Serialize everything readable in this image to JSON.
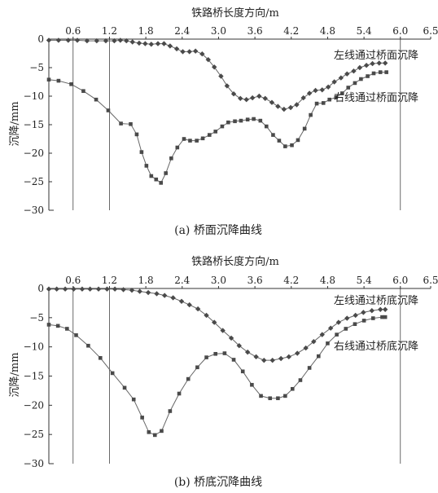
{
  "chart_data": [
    {
      "type": "line",
      "caption": "(a) 桥面沉降曲线",
      "xlabel": "铁路桥长度方向/m",
      "ylabel": "沉降/mm",
      "x_ticks": [
        "0.6",
        "1.2",
        "1.8",
        "2.4",
        "3.0",
        "3.6",
        "4.2",
        "4.8",
        "5.4",
        "6.0",
        "6.5"
      ],
      "y_ticks": [
        "0",
        "−5",
        "−10",
        "−15",
        "−20",
        "−25",
        "−30"
      ],
      "xlim": [
        0.2,
        6.5
      ],
      "ylim": [
        -30,
        0
      ],
      "grid": "vertical lines at 0.6, 1.2 and 6.0",
      "series": [
        {
          "name": "左线通过桥面沉降",
          "marker": "diamond",
          "x": [
            0.2,
            0.36,
            0.52,
            0.67,
            0.83,
            0.99,
            1.14,
            1.28,
            1.38,
            1.48,
            1.58,
            1.69,
            1.79,
            1.89,
            2.0,
            2.1,
            2.2,
            2.31,
            2.41,
            2.52,
            2.62,
            2.73,
            2.83,
            2.93,
            3.04,
            3.14,
            3.25,
            3.36,
            3.46,
            3.56,
            3.67,
            3.77,
            3.88,
            3.98,
            4.08,
            4.19,
            4.29,
            4.4,
            4.5,
            4.6,
            4.71,
            4.81,
            4.91,
            5.02,
            5.12,
            5.23,
            5.33,
            5.44,
            5.54,
            5.65,
            5.75
          ],
          "y": [
            -0.2,
            -0.2,
            -0.2,
            -0.2,
            -0.3,
            -0.3,
            -0.3,
            -0.3,
            -0.2,
            -0.3,
            -0.5,
            -0.7,
            -0.8,
            -0.9,
            -0.8,
            -0.8,
            -1.2,
            -1.7,
            -2.2,
            -2.2,
            -2.1,
            -2.6,
            -3.6,
            -4.9,
            -6.5,
            -8.2,
            -9.6,
            -10.4,
            -10.6,
            -10.3,
            -10.0,
            -10.4,
            -11.1,
            -11.8,
            -12.3,
            -12.0,
            -11.5,
            -10.3,
            -9.5,
            -9.0,
            -8.9,
            -8.4,
            -7.5,
            -6.8,
            -6.1,
            -5.6,
            -5.0,
            -4.6,
            -4.3,
            -4.2,
            -4.2
          ]
        },
        {
          "name": "右线通过桥面沉降",
          "marker": "square",
          "x": [
            0.2,
            0.36,
            0.57,
            0.77,
            0.98,
            1.18,
            1.39,
            1.55,
            1.65,
            1.73,
            1.81,
            1.89,
            1.97,
            2.05,
            2.13,
            2.22,
            2.32,
            2.43,
            2.53,
            2.64,
            2.74,
            2.85,
            2.95,
            3.06,
            3.16,
            3.27,
            3.37,
            3.48,
            3.58,
            3.69,
            3.79,
            3.9,
            4.0,
            4.1,
            4.21,
            4.31,
            4.42,
            4.52,
            4.62,
            4.73,
            4.83,
            4.94,
            5.04,
            5.14,
            5.25,
            5.35,
            5.46,
            5.56,
            5.67,
            5.77
          ],
          "y": [
            -7.1,
            -7.3,
            -7.9,
            -9.1,
            -10.6,
            -12.5,
            -14.8,
            -14.9,
            -16.7,
            -19.8,
            -22.2,
            -24.0,
            -24.6,
            -25.2,
            -23.5,
            -20.9,
            -19.0,
            -17.5,
            -17.8,
            -17.8,
            -17.4,
            -16.8,
            -16.2,
            -15.3,
            -14.6,
            -14.4,
            -14.3,
            -14.1,
            -14.0,
            -14.3,
            -15.3,
            -16.8,
            -17.8,
            -18.8,
            -18.6,
            -17.7,
            -15.7,
            -13.3,
            -11.3,
            -11.2,
            -10.6,
            -10.2,
            -9.5,
            -8.5,
            -7.7,
            -7.0,
            -6.5,
            -6.0,
            -5.8,
            -5.8
          ]
        }
      ]
    },
    {
      "type": "line",
      "caption": "(b) 桥底沉降曲线",
      "xlabel": "铁路桥长度方向/m",
      "ylabel": "沉降/mm",
      "x_ticks": [
        "0.6",
        "1.2",
        "1.8",
        "2.4",
        "3.0",
        "3.6",
        "4.2",
        "4.8",
        "5.4",
        "6.0",
        "6.5"
      ],
      "y_ticks": [
        "0",
        "−5",
        "−10",
        "−15",
        "−20",
        "−25",
        "−30"
      ],
      "xlim": [
        0.2,
        6.5
      ],
      "ylim": [
        -30,
        0
      ],
      "grid": "vertical lines at 0.6, 1.2 and 6.0",
      "series": [
        {
          "name": "左线通过桥底沉降",
          "marker": "diamond",
          "x": [
            0.2,
            0.33,
            0.47,
            0.61,
            0.75,
            0.88,
            1.02,
            1.16,
            1.29,
            1.43,
            1.57,
            1.7,
            1.84,
            1.98,
            2.11,
            2.25,
            2.39,
            2.52,
            2.66,
            2.8,
            2.93,
            3.07,
            3.21,
            3.34,
            3.48,
            3.62,
            3.75,
            3.89,
            4.03,
            4.16,
            4.3,
            4.44,
            4.57,
            4.71,
            4.85,
            4.98,
            5.12,
            5.26,
            5.39,
            5.53,
            5.67,
            5.75
          ],
          "y": [
            -0.1,
            -0.1,
            -0.1,
            -0.1,
            -0.1,
            -0.1,
            -0.1,
            -0.1,
            -0.1,
            -0.2,
            -0.3,
            -0.5,
            -0.7,
            -0.9,
            -1.2,
            -1.6,
            -2.2,
            -2.8,
            -3.5,
            -4.6,
            -5.8,
            -7.2,
            -8.5,
            -9.8,
            -10.9,
            -11.7,
            -12.3,
            -12.3,
            -12.0,
            -11.7,
            -11.1,
            -10.2,
            -9.1,
            -7.9,
            -6.8,
            -5.8,
            -5.1,
            -4.6,
            -4.1,
            -3.8,
            -3.6,
            -3.6
          ]
        },
        {
          "name": "右线通过桥底沉降",
          "marker": "square",
          "x": [
            0.2,
            0.35,
            0.5,
            0.65,
            0.85,
            1.05,
            1.25,
            1.45,
            1.6,
            1.74,
            1.85,
            1.95,
            2.06,
            2.2,
            2.35,
            2.5,
            2.65,
            2.8,
            2.95,
            3.1,
            3.25,
            3.4,
            3.55,
            3.7,
            3.85,
            3.98,
            4.1,
            4.22,
            4.35,
            4.5,
            4.65,
            4.8,
            4.95,
            5.1,
            5.25,
            5.4,
            5.55,
            5.7,
            5.75
          ],
          "y": [
            -6.2,
            -6.4,
            -6.9,
            -8.0,
            -9.8,
            -11.9,
            -14.5,
            -17.0,
            -19.0,
            -22.1,
            -24.6,
            -25.1,
            -24.4,
            -21.0,
            -18.0,
            -15.5,
            -13.5,
            -11.8,
            -11.2,
            -11.1,
            -12.2,
            -14.2,
            -16.5,
            -18.4,
            -18.8,
            -18.8,
            -18.4,
            -17.2,
            -15.7,
            -13.6,
            -11.6,
            -9.4,
            -7.9,
            -6.9,
            -6.1,
            -5.5,
            -5.1,
            -4.9,
            -4.9
          ]
        }
      ]
    }
  ]
}
